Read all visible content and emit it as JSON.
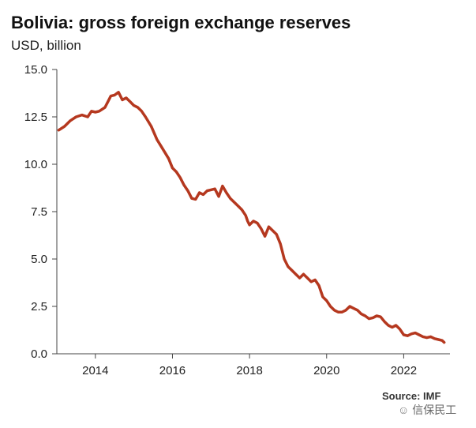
{
  "header": {
    "title": "Bolivia: gross foreign exchange reserves",
    "subtitle": "USD, billion"
  },
  "footer": {
    "source": "Source: IMF",
    "watermark": "信保民工"
  },
  "icons": {
    "watermark_logo": "wechat-logo-icon"
  },
  "colors": {
    "line": "#b5381f",
    "axis": "#444444",
    "text": "#222222"
  },
  "chart_data": {
    "type": "line",
    "title": "Bolivia: gross foreign exchange reserves",
    "ylabel": "USD, billion",
    "xlabel": "",
    "xlim": [
      2013.0,
      2023.2
    ],
    "ylim": [
      0,
      15
    ],
    "x_ticks": [
      2014,
      2016,
      2018,
      2020,
      2022
    ],
    "x_tick_labels": [
      "2014",
      "2016",
      "2018",
      "2020",
      "2022"
    ],
    "y_ticks": [
      0,
      2.5,
      5,
      7.5,
      10,
      12.5,
      15
    ],
    "y_tick_labels": [
      "0.0",
      "2.5",
      "5.0",
      "7.5",
      "10.0",
      "12.5",
      "15.0"
    ],
    "grid": false,
    "legend": "none",
    "series": [
      {
        "x": [
          2013.05,
          2013.2,
          2013.35,
          2013.5,
          2013.65,
          2013.8,
          2013.9,
          2014.0,
          2014.1,
          2014.25,
          2014.4,
          2014.5,
          2014.6,
          2014.7,
          2014.8,
          2014.9,
          2015.0,
          2015.1,
          2015.2,
          2015.3,
          2015.45,
          2015.6,
          2015.75,
          2015.9,
          2016.0,
          2016.1,
          2016.2,
          2016.3,
          2016.4,
          2016.5,
          2016.6,
          2016.7,
          2016.8,
          2016.9,
          2017.0,
          2017.1,
          2017.2,
          2017.3,
          2017.4,
          2017.5,
          2017.6,
          2017.7,
          2017.8,
          2017.9,
          2017.95,
          2018.0,
          2018.1,
          2018.2,
          2018.3,
          2018.4,
          2018.5,
          2018.6,
          2018.7,
          2018.8,
          2018.9,
          2019.0,
          2019.1,
          2019.2,
          2019.3,
          2019.4,
          2019.5,
          2019.6,
          2019.7,
          2019.8,
          2019.9,
          2020.0,
          2020.1,
          2020.2,
          2020.3,
          2020.4,
          2020.5,
          2020.6,
          2020.7,
          2020.8,
          2020.9,
          2021.0,
          2021.1,
          2021.2,
          2021.3,
          2021.4,
          2021.5,
          2021.6,
          2021.7,
          2021.8,
          2021.9,
          2022.0,
          2022.1,
          2022.2,
          2022.3,
          2022.4,
          2022.5,
          2022.6,
          2022.7,
          2022.8,
          2022.9,
          2023.0,
          2023.05
        ],
        "values": [
          11.8,
          12.0,
          12.3,
          12.5,
          12.6,
          12.5,
          12.8,
          12.75,
          12.8,
          13.0,
          13.6,
          13.65,
          13.8,
          13.4,
          13.5,
          13.3,
          13.1,
          13.0,
          12.8,
          12.5,
          12.0,
          11.3,
          10.8,
          10.3,
          9.8,
          9.6,
          9.3,
          8.9,
          8.6,
          8.2,
          8.15,
          8.5,
          8.4,
          8.6,
          8.65,
          8.7,
          8.3,
          8.85,
          8.5,
          8.2,
          8.0,
          7.8,
          7.6,
          7.3,
          7.0,
          6.8,
          7.0,
          6.9,
          6.6,
          6.2,
          6.7,
          6.5,
          6.3,
          5.8,
          5.0,
          4.6,
          4.4,
          4.2,
          4.0,
          4.2,
          4.0,
          3.8,
          3.9,
          3.6,
          3.0,
          2.8,
          2.5,
          2.3,
          2.2,
          2.2,
          2.3,
          2.5,
          2.4,
          2.3,
          2.1,
          2.0,
          1.85,
          1.9,
          2.0,
          1.95,
          1.7,
          1.5,
          1.4,
          1.5,
          1.3,
          1.0,
          0.95,
          1.05,
          1.1,
          1.0,
          0.9,
          0.85,
          0.9,
          0.8,
          0.75,
          0.7,
          0.6
        ]
      }
    ]
  }
}
